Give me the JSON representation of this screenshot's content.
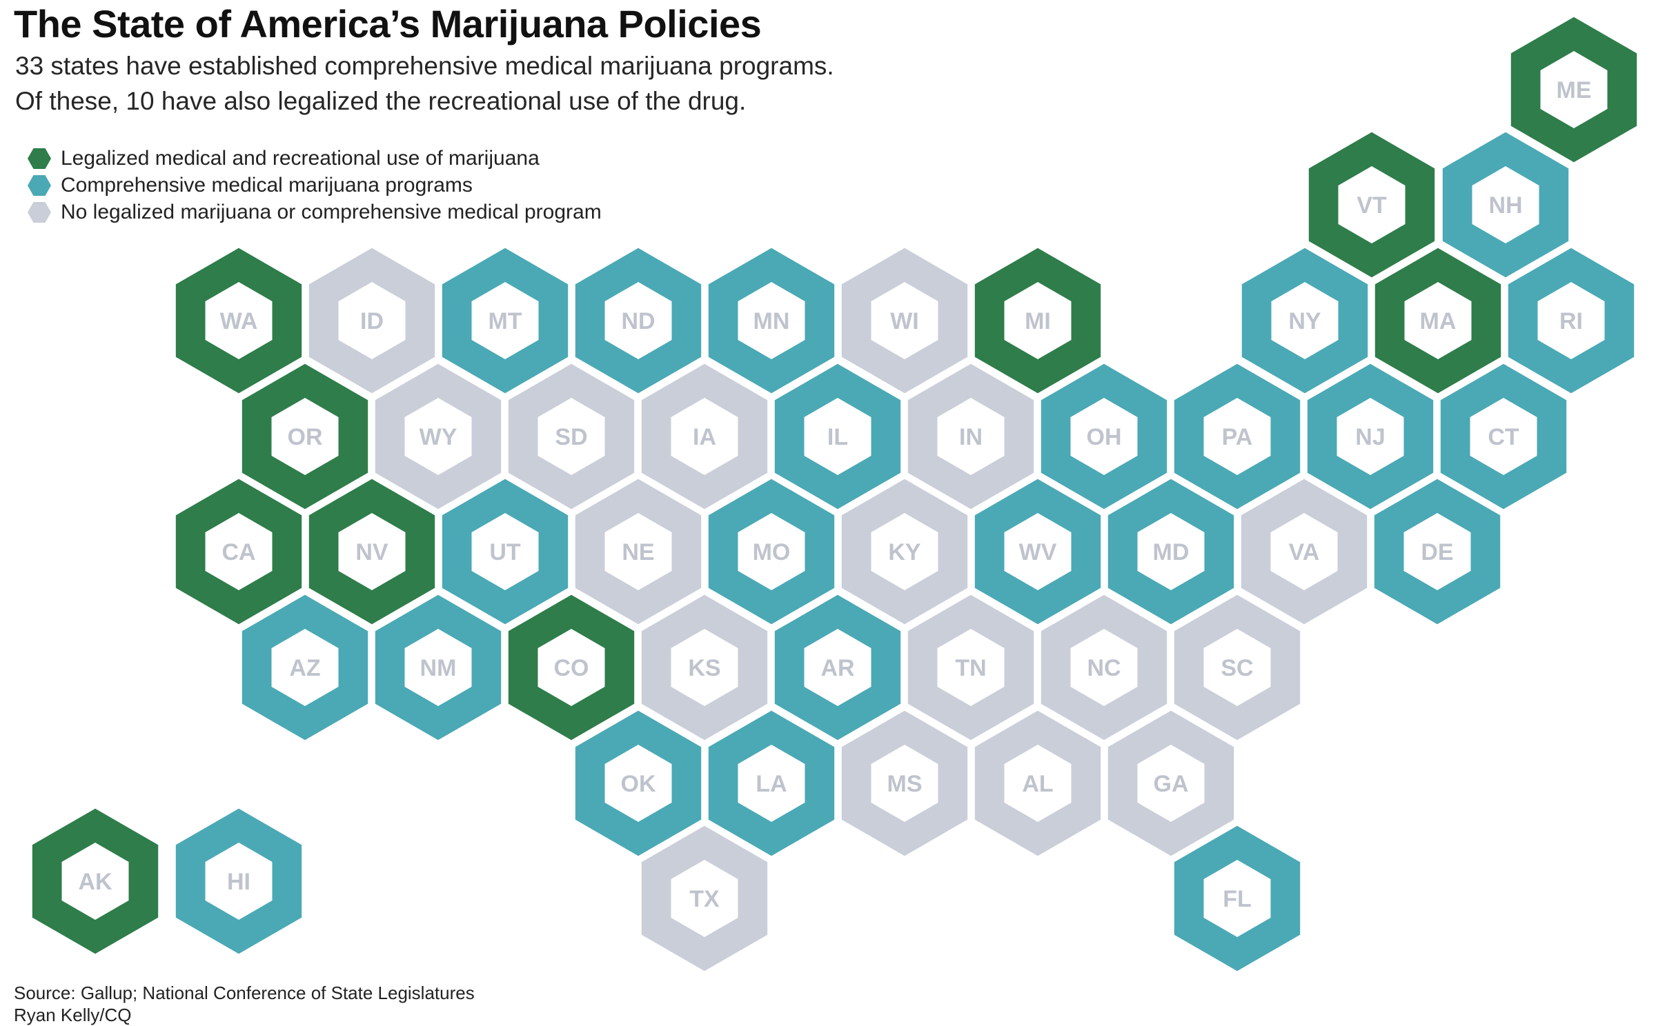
{
  "title": "The State of America’s Marijuana Policies",
  "subtitle": {
    "line1": "33 states have established comprehensive medical marijuana programs.",
    "line2": "Of these, 10 have also legalized the recreational use of the drug."
  },
  "colors": {
    "recreational": "#2e7d4a",
    "medical": "#4aa9b5",
    "none": "#c9ced8",
    "inner": "#ffffff",
    "label": "#bfc3cd"
  },
  "legend": [
    {
      "key": "recreational",
      "label": "Legalized medical and recreational use of marijuana"
    },
    {
      "key": "medical",
      "label": "Comprehensive medical marijuana programs"
    },
    {
      "key": "none",
      "label": "No legalized marijuana or comprehensive medical program"
    }
  ],
  "states": [
    {
      "abbr": "ME",
      "status": "recreational"
    },
    {
      "abbr": "VT",
      "status": "recreational"
    },
    {
      "abbr": "NH",
      "status": "medical"
    },
    {
      "abbr": "WA",
      "status": "recreational"
    },
    {
      "abbr": "ID",
      "status": "none"
    },
    {
      "abbr": "MT",
      "status": "medical"
    },
    {
      "abbr": "ND",
      "status": "medical"
    },
    {
      "abbr": "MN",
      "status": "medical"
    },
    {
      "abbr": "WI",
      "status": "none"
    },
    {
      "abbr": "MI",
      "status": "recreational"
    },
    {
      "abbr": "NY",
      "status": "medical"
    },
    {
      "abbr": "MA",
      "status": "recreational"
    },
    {
      "abbr": "RI",
      "status": "medical"
    },
    {
      "abbr": "OR",
      "status": "recreational"
    },
    {
      "abbr": "WY",
      "status": "none"
    },
    {
      "abbr": "SD",
      "status": "none"
    },
    {
      "abbr": "IA",
      "status": "none"
    },
    {
      "abbr": "IL",
      "status": "medical"
    },
    {
      "abbr": "IN",
      "status": "none"
    },
    {
      "abbr": "OH",
      "status": "medical"
    },
    {
      "abbr": "PA",
      "status": "medical"
    },
    {
      "abbr": "NJ",
      "status": "medical"
    },
    {
      "abbr": "CT",
      "status": "medical"
    },
    {
      "abbr": "CA",
      "status": "recreational"
    },
    {
      "abbr": "NV",
      "status": "recreational"
    },
    {
      "abbr": "UT",
      "status": "medical"
    },
    {
      "abbr": "NE",
      "status": "none"
    },
    {
      "abbr": "MO",
      "status": "medical"
    },
    {
      "abbr": "KY",
      "status": "none"
    },
    {
      "abbr": "WV",
      "status": "medical"
    },
    {
      "abbr": "MD",
      "status": "medical"
    },
    {
      "abbr": "VA",
      "status": "none"
    },
    {
      "abbr": "DE",
      "status": "medical"
    },
    {
      "abbr": "AZ",
      "status": "medical"
    },
    {
      "abbr": "NM",
      "status": "medical"
    },
    {
      "abbr": "CO",
      "status": "recreational"
    },
    {
      "abbr": "KS",
      "status": "none"
    },
    {
      "abbr": "AR",
      "status": "medical"
    },
    {
      "abbr": "TN",
      "status": "none"
    },
    {
      "abbr": "NC",
      "status": "none"
    },
    {
      "abbr": "SC",
      "status": "none"
    },
    {
      "abbr": "OK",
      "status": "medical"
    },
    {
      "abbr": "LA",
      "status": "medical"
    },
    {
      "abbr": "MS",
      "status": "none"
    },
    {
      "abbr": "AL",
      "status": "none"
    },
    {
      "abbr": "GA",
      "status": "none"
    },
    {
      "abbr": "AK",
      "status": "recreational"
    },
    {
      "abbr": "HI",
      "status": "medical"
    },
    {
      "abbr": "TX",
      "status": "none"
    },
    {
      "abbr": "FL",
      "status": "medical"
    }
  ],
  "source": {
    "line1": "Source: Gallup; National Conference of State Legislatures",
    "line2": "Ryan Kelly/CQ"
  }
}
